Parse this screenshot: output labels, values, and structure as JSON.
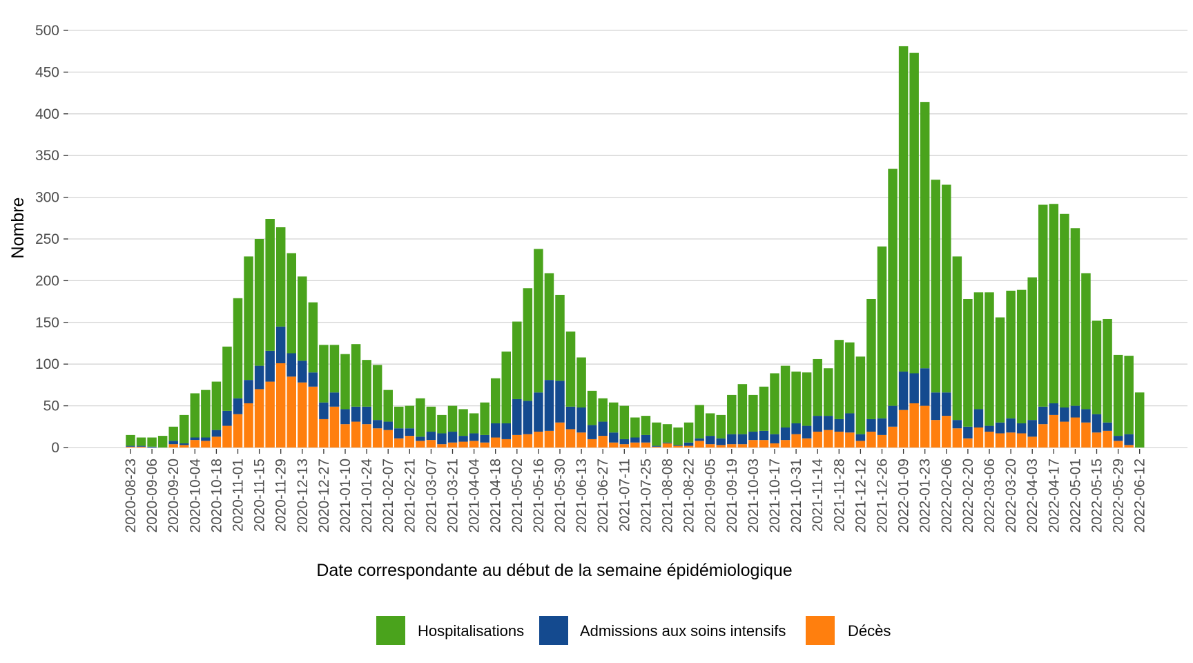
{
  "chart_data": {
    "type": "bar",
    "stacked": true,
    "title": "",
    "xlabel": "Date correspondante au début de la semaine épidémiologique",
    "ylabel": "Nombre",
    "ylim": [
      0,
      500
    ],
    "yticks": [
      0,
      50,
      100,
      150,
      200,
      250,
      300,
      350,
      400,
      450,
      500
    ],
    "grid": true,
    "legend_position": "bottom",
    "colors": {
      "Hospitalisations": "#4aa31c",
      "Admissions aux soins intensifs": "#144a8f",
      "Décès": "#ff7f0e"
    },
    "categories": [
      "2020-08-23",
      "2020-08-30",
      "2020-09-06",
      "2020-09-13",
      "2020-09-20",
      "2020-09-27",
      "2020-10-04",
      "2020-10-11",
      "2020-10-18",
      "2020-10-25",
      "2020-11-01",
      "2020-11-08",
      "2020-11-15",
      "2020-11-22",
      "2020-11-29",
      "2020-12-06",
      "2020-12-13",
      "2020-12-20",
      "2020-12-27",
      "2021-01-03",
      "2021-01-10",
      "2021-01-17",
      "2021-01-24",
      "2021-01-31",
      "2021-02-07",
      "2021-02-14",
      "2021-02-21",
      "2021-02-28",
      "2021-03-07",
      "2021-03-14",
      "2021-03-21",
      "2021-03-28",
      "2021-04-04",
      "2021-04-11",
      "2021-04-18",
      "2021-04-25",
      "2021-05-02",
      "2021-05-09",
      "2021-05-16",
      "2021-05-23",
      "2021-05-30",
      "2021-06-06",
      "2021-06-13",
      "2021-06-20",
      "2021-06-27",
      "2021-07-04",
      "2021-07-11",
      "2021-07-18",
      "2021-07-25",
      "2021-08-01",
      "2021-08-08",
      "2021-08-15",
      "2021-08-22",
      "2021-08-29",
      "2021-09-05",
      "2021-09-12",
      "2021-09-19",
      "2021-09-26",
      "2021-10-03",
      "2021-10-10",
      "2021-10-17",
      "2021-10-24",
      "2021-10-31",
      "2021-11-07",
      "2021-11-14",
      "2021-11-21",
      "2021-11-28",
      "2021-12-05",
      "2021-12-12",
      "2021-12-19",
      "2021-12-26",
      "2022-01-02",
      "2022-01-09",
      "2022-01-16",
      "2022-01-23",
      "2022-01-30",
      "2022-02-06",
      "2022-02-13",
      "2022-02-20",
      "2022-02-27",
      "2022-03-06",
      "2022-03-13",
      "2022-03-20",
      "2022-03-27",
      "2022-04-03",
      "2022-04-10",
      "2022-04-17",
      "2022-04-24",
      "2022-05-01",
      "2022-05-08",
      "2022-05-15",
      "2022-05-22",
      "2022-05-29",
      "2022-06-05",
      "2022-06-12"
    ],
    "tick_labels": [
      "2020-08-23",
      "2020-09-06",
      "2020-09-20",
      "2020-10-04",
      "2020-10-18",
      "2020-11-01",
      "2020-11-15",
      "2020-11-29",
      "2020-12-13",
      "2020-12-27",
      "2021-01-10",
      "2021-01-24",
      "2021-02-07",
      "2021-02-21",
      "2021-03-07",
      "2021-03-21",
      "2021-04-04",
      "2021-04-18",
      "2021-05-02",
      "2021-05-16",
      "2021-05-30",
      "2021-06-13",
      "2021-06-27",
      "2021-07-11",
      "2021-07-25",
      "2021-08-08",
      "2021-08-22",
      "2021-09-05",
      "2021-09-19",
      "2021-10-03",
      "2021-10-17",
      "2021-10-31",
      "2021-11-14",
      "2021-11-28",
      "2021-12-12",
      "2021-12-26",
      "2022-01-09",
      "2022-01-23",
      "2022-02-06",
      "2022-02-20",
      "2022-03-06",
      "2022-03-20",
      "2022-04-03",
      "2022-04-17",
      "2022-05-01",
      "2022-05-15",
      "2022-05-29",
      "2022-06-12"
    ],
    "series": [
      {
        "name": "Décès",
        "values": [
          1,
          1,
          0,
          0,
          4,
          3,
          9,
          8,
          13,
          26,
          40,
          53,
          70,
          79,
          101,
          85,
          78,
          73,
          34,
          49,
          28,
          31,
          28,
          23,
          21,
          11,
          14,
          8,
          9,
          4,
          6,
          7,
          8,
          6,
          12,
          10,
          15,
          16,
          19,
          20,
          30,
          22,
          18,
          10,
          14,
          6,
          4,
          6,
          6,
          1,
          5,
          2,
          2,
          8,
          4,
          3,
          4,
          4,
          9,
          9,
          5,
          9,
          16,
          11,
          19,
          21,
          19,
          18,
          8,
          19,
          15,
          25,
          45,
          53,
          50,
          33,
          38,
          23,
          11,
          24,
          19,
          17,
          18,
          17,
          13,
          28,
          39,
          31,
          36,
          30,
          18,
          20,
          8,
          3,
          0
        ]
      },
      {
        "name": "Admissions aux soins intensifs",
        "values": [
          1,
          1,
          1,
          0,
          4,
          2,
          3,
          4,
          8,
          18,
          19,
          28,
          28,
          37,
          44,
          28,
          26,
          17,
          20,
          17,
          18,
          18,
          21,
          10,
          10,
          12,
          9,
          5,
          10,
          13,
          13,
          7,
          9,
          9,
          17,
          19,
          43,
          40,
          47,
          61,
          50,
          27,
          30,
          17,
          17,
          12,
          6,
          6,
          9,
          1,
          1,
          1,
          4,
          3,
          10,
          8,
          12,
          12,
          10,
          11,
          11,
          15,
          13,
          15,
          19,
          17,
          15,
          23,
          8,
          15,
          20,
          25,
          46,
          36,
          45,
          33,
          28,
          10,
          14,
          22,
          7,
          13,
          17,
          12,
          20,
          21,
          14,
          17,
          14,
          16,
          22,
          10,
          6,
          13,
          0
        ]
      },
      {
        "name": "Hospitalisations",
        "values": [
          13,
          10,
          11,
          14,
          17,
          34,
          53,
          57,
          58,
          77,
          120,
          148,
          152,
          158,
          119,
          120,
          101,
          84,
          69,
          57,
          66,
          75,
          56,
          66,
          38,
          26,
          27,
          46,
          30,
          22,
          31,
          32,
          24,
          39,
          54,
          86,
          93,
          135,
          172,
          128,
          103,
          90,
          60,
          41,
          28,
          36,
          40,
          24,
          23,
          28,
          22,
          21,
          24,
          40,
          27,
          28,
          47,
          60,
          44,
          53,
          73,
          74,
          62,
          64,
          68,
          57,
          95,
          85,
          93,
          144,
          206,
          284,
          390,
          384,
          319,
          255,
          249,
          196,
          153,
          140,
          160,
          126,
          153,
          160,
          171,
          242,
          239,
          232,
          213,
          163,
          112,
          124,
          97,
          94,
          66
        ]
      }
    ]
  }
}
